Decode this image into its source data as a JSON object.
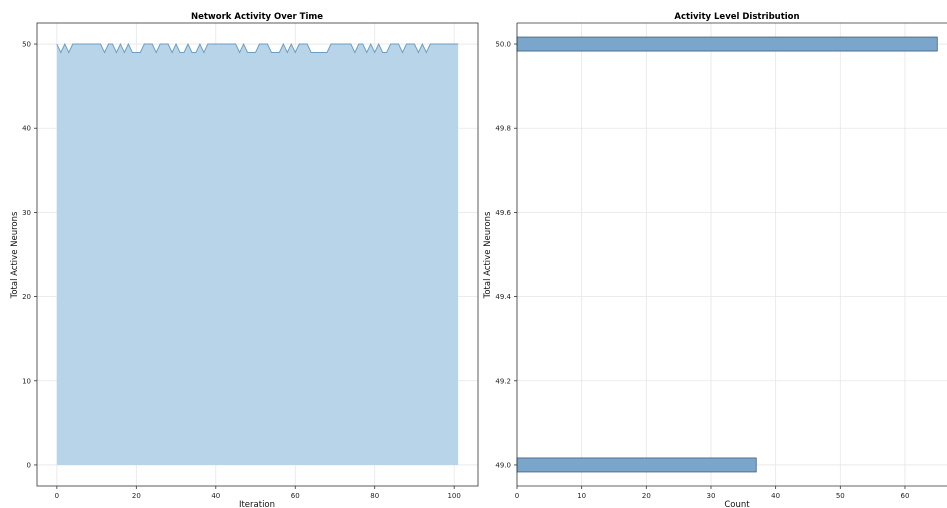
{
  "chart_data": [
    {
      "type": "area",
      "title": "Network Activity Over Time",
      "xlabel": "Iteration",
      "ylabel": "Total Active Neurons",
      "xlim": [
        -5,
        106
      ],
      "ylim": [
        -2.5,
        52.5
      ],
      "xticks": [
        0,
        20,
        40,
        60,
        80,
        100
      ],
      "yticks": [
        0,
        10,
        20,
        30,
        40,
        50
      ],
      "grid": true,
      "fill_color": "#b8d4e8",
      "line_color": "#6d9ec4",
      "x": [
        0,
        1,
        2,
        3,
        4,
        5,
        6,
        7,
        8,
        9,
        10,
        11,
        12,
        13,
        14,
        15,
        16,
        17,
        18,
        19,
        20,
        21,
        22,
        23,
        24,
        25,
        26,
        27,
        28,
        29,
        30,
        31,
        32,
        33,
        34,
        35,
        36,
        37,
        38,
        39,
        40,
        41,
        42,
        43,
        44,
        45,
        46,
        47,
        48,
        49,
        50,
        51,
        52,
        53,
        54,
        55,
        56,
        57,
        58,
        59,
        60,
        61,
        62,
        63,
        64,
        65,
        66,
        67,
        68,
        69,
        70,
        71,
        72,
        73,
        74,
        75,
        76,
        77,
        78,
        79,
        80,
        81,
        82,
        83,
        84,
        85,
        86,
        87,
        88,
        89,
        90,
        91,
        92,
        93,
        94,
        95,
        96,
        97,
        98,
        99,
        100,
        101
      ],
      "values": [
        50,
        49,
        50,
        49,
        50,
        50,
        50,
        50,
        50,
        50,
        50,
        50,
        49,
        50,
        50,
        49,
        50,
        49,
        50,
        49,
        49,
        49,
        50,
        50,
        50,
        49,
        50,
        50,
        50,
        49,
        50,
        49,
        49,
        50,
        49,
        49,
        50,
        49,
        50,
        50,
        50,
        50,
        50,
        50,
        50,
        50,
        49,
        50,
        49,
        49,
        49,
        50,
        50,
        50,
        49,
        49,
        49,
        50,
        49,
        50,
        49,
        50,
        50,
        50,
        49,
        49,
        49,
        49,
        49,
        50,
        50,
        50,
        50,
        50,
        50,
        49,
        50,
        50,
        49,
        50,
        49,
        50,
        49,
        49,
        50,
        50,
        50,
        49,
        50,
        50,
        50,
        49,
        50,
        49,
        50,
        50,
        50,
        50,
        50,
        50,
        50,
        50
      ]
    },
    {
      "type": "bar",
      "orientation": "horizontal",
      "title": "Activity Level Distribution",
      "xlabel": "Count",
      "ylabel": "Total Active Neurons",
      "xlim": [
        0,
        66.5
      ],
      "ylim": [
        48.95,
        50.05
      ],
      "xticks": [
        0,
        10,
        20,
        30,
        40,
        50,
        60
      ],
      "yticks": [
        "49.0",
        "49.2",
        "49.4",
        "49.6",
        "49.8",
        "50.0"
      ],
      "grid": true,
      "bar_color": "#7aa6cc",
      "bars": [
        {
          "y": 49.0,
          "value": 37
        },
        {
          "y": 50.0,
          "value": 65
        }
      ]
    }
  ]
}
